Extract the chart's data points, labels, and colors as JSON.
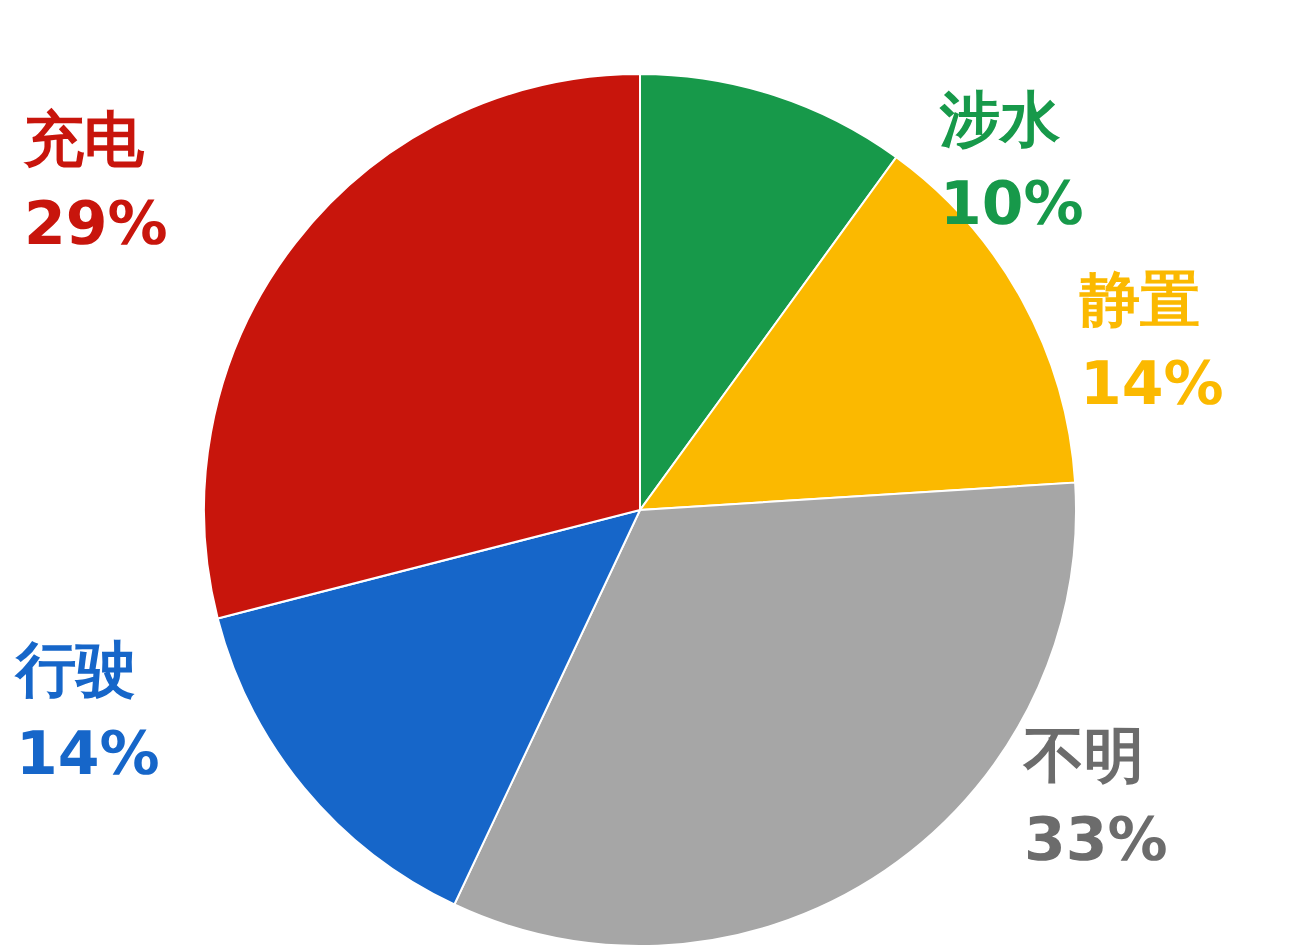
{
  "chart_data": {
    "type": "pie",
    "categories": [
      "涉水",
      "静置",
      "不明",
      "行驶",
      "充电"
    ],
    "values": [
      10,
      14,
      33,
      14,
      29
    ],
    "value_labels": [
      "10%",
      "14%",
      "33%",
      "14%",
      "29%"
    ],
    "colors": [
      "#17994a",
      "#fbb900",
      "#a6a6a6",
      "#1666c9",
      "#c8150c"
    ]
  }
}
